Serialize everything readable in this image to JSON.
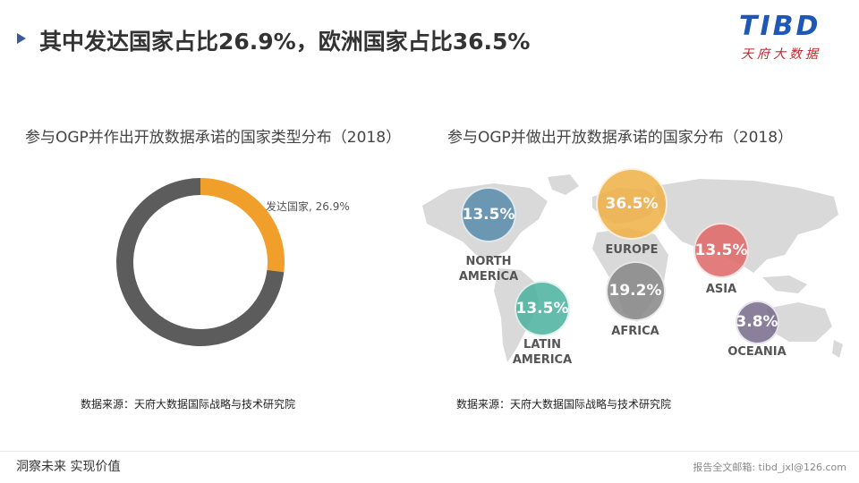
{
  "headline": "其中发达国家占比26.9%，欧洲国家占比36.5%",
  "logo": {
    "wordmark": "TIBD",
    "subtitle": "天府大数据"
  },
  "colors": {
    "donut_highlight": "#F0A02A",
    "donut_rest": "#5C5C5C",
    "map_land": "#D9D9D9",
    "north_america": "#5E8FAD",
    "europe": "#F0B24A",
    "asia": "#E06A6A",
    "latin_america": "#4FB3A1",
    "africa": "#8A8A8A",
    "oceania": "#7A6F8F",
    "headline_arrow": "#3A5A9A",
    "logo_blue": "#1F57B5",
    "logo_red": "#C0262D"
  },
  "chart_data": [
    {
      "type": "pie",
      "title": "参与OGP并作出开放数据承诺的国家类型分布（2018）",
      "slices": [
        {
          "name": "发达国家",
          "value": 26.9,
          "label": "发达国家, 26.9%"
        },
        {
          "name": "",
          "value": 73.1,
          "label": ""
        }
      ],
      "donut": true,
      "source": "数据来源：天府大数据国际战略与技术研究院"
    },
    {
      "type": "scatter",
      "title": "参与OGP并做出开放数据承诺的国家分布（2018）",
      "regions": [
        {
          "name": "NORTH\nAMERICA",
          "value": 13.5,
          "label": "13.5%"
        },
        {
          "name": "EUROPE",
          "value": 36.5,
          "label": "36.5%"
        },
        {
          "name": "ASIA",
          "value": 13.5,
          "label": "13.5%"
        },
        {
          "name": "LATIN\nAMERICA",
          "value": 13.5,
          "label": "13.5%"
        },
        {
          "name": "AFRICA",
          "value": 19.2,
          "label": "19.2%"
        },
        {
          "name": "OCEANIA",
          "value": 3.8,
          "label": "3.8%"
        }
      ],
      "source": "数据来源：天府大数据国际战略与技术研究院"
    }
  ],
  "footer": {
    "slogan": "洞察未来 实现价值",
    "contact": "报告全文邮箱: tibd_jxl@126.com"
  }
}
